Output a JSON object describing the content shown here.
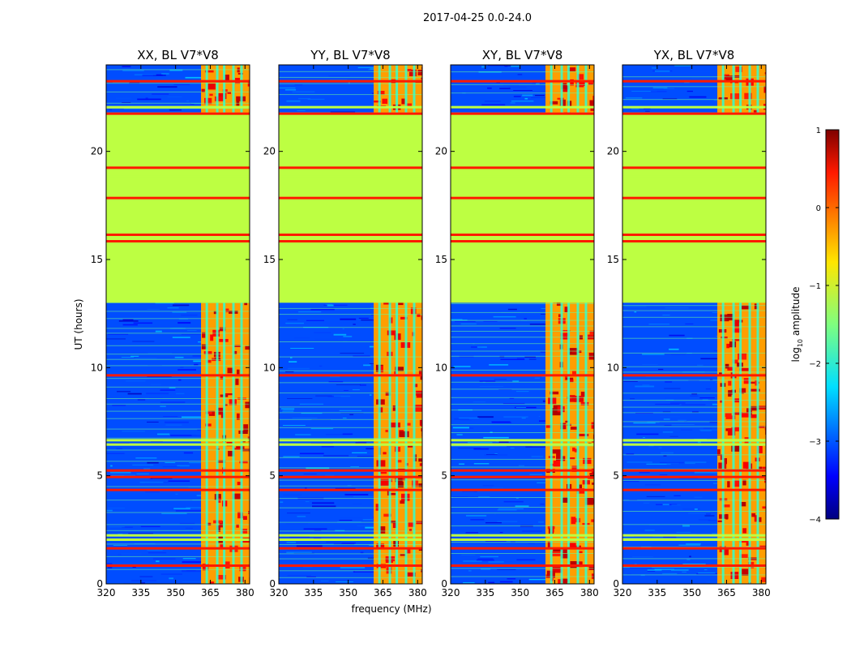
{
  "chart_data": {
    "type": "heatmap",
    "suptitle": "2017-04-25 0.0-24.0",
    "xlabel": "frequency (MHz)",
    "ylabel": "UT (hours)",
    "xlim": [
      320,
      382
    ],
    "ylim": [
      0,
      24
    ],
    "xticks": [
      320,
      335,
      350,
      365,
      380
    ],
    "yticks": [
      0,
      5,
      10,
      15,
      20
    ],
    "colormap": "jet",
    "colorbar": {
      "label_prefix": "log",
      "label_sub": "10",
      "label_suffix": " amplitude",
      "vmin": -4,
      "vmax": 1,
      "ticks": [
        -4,
        -3,
        -2,
        -1,
        0,
        1
      ],
      "tick_labels": [
        "−4",
        "−3",
        "−2",
        "−1",
        "0",
        "1"
      ]
    },
    "panels": [
      {
        "title": "XX, BL V7*V8",
        "band_start_mhz": 361
      },
      {
        "title": "YY, BL V7*V8",
        "band_start_mhz": 361
      },
      {
        "title": "XY, BL V7*V8",
        "band_start_mhz": 361
      },
      {
        "title": "YX, BL V7*V8",
        "band_start_mhz": 361
      }
    ],
    "flagged_block_ut": [
      13.0,
      21.8
    ],
    "flagged_value": -1.2,
    "background_value": -3.0,
    "band_value": -0.4,
    "strong_rfi_rows_ut": [
      0.9,
      1.7,
      4.4,
      5.0,
      5.3,
      9.7,
      15.9,
      16.2,
      17.9,
      19.3,
      21.8,
      23.3
    ],
    "flagged_rows_ut": [
      2.1,
      2.3,
      6.5,
      6.7,
      18.8,
      19.0,
      22.1
    ],
    "channel_stripes_mhz": [
      363.5,
      368,
      371,
      375,
      378.5
    ]
  }
}
